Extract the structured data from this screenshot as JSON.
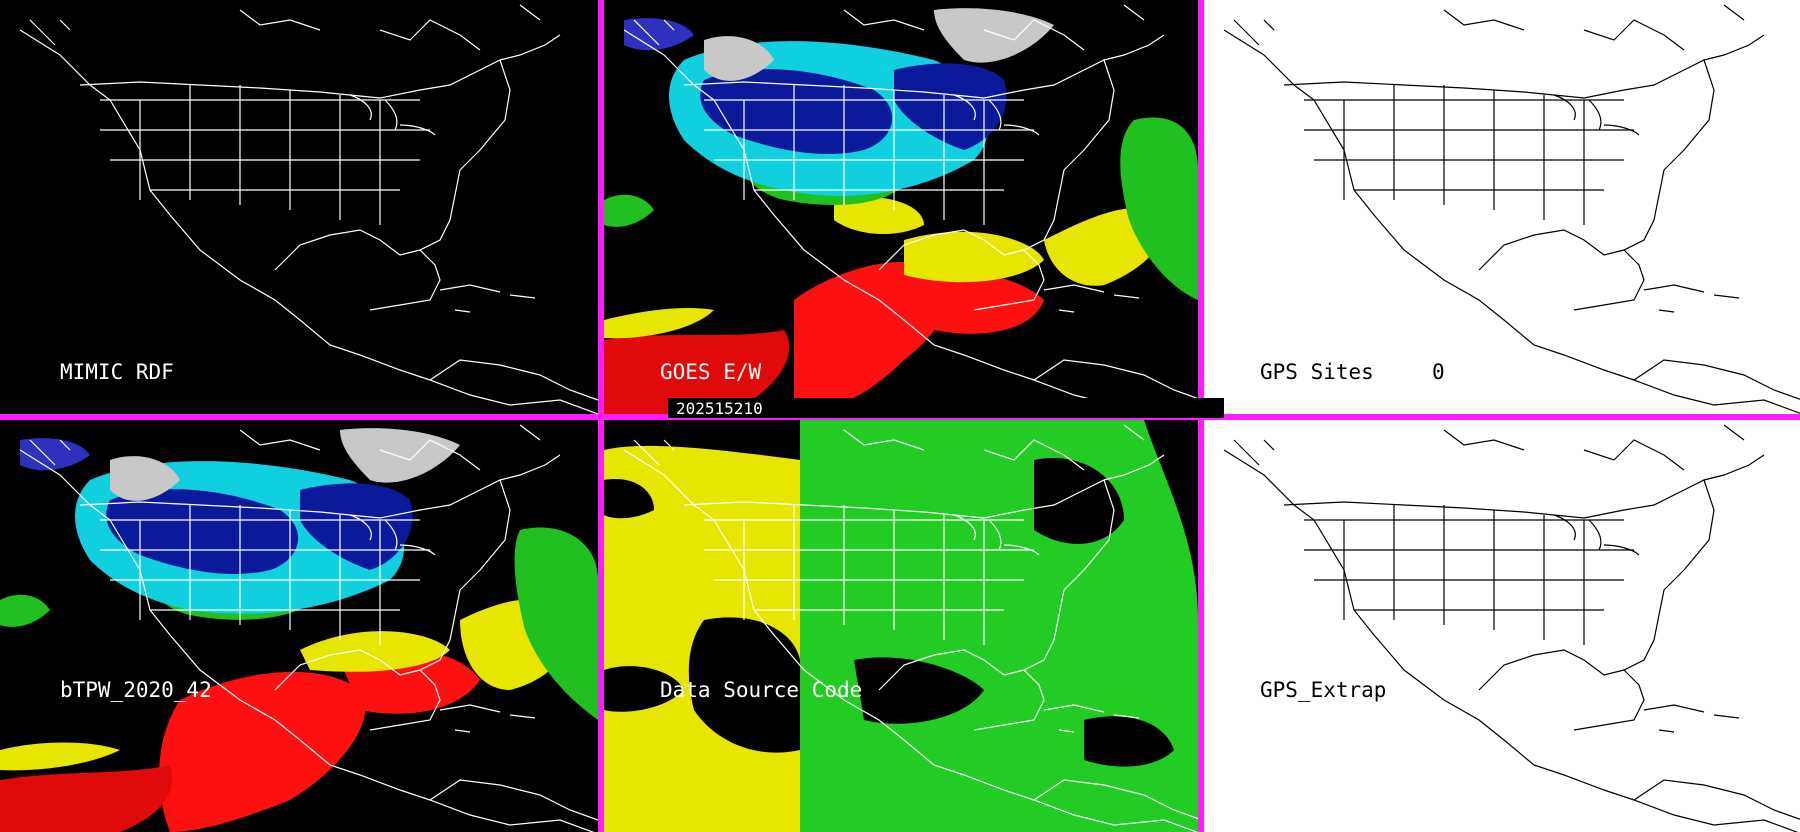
{
  "panels": {
    "mimic_rdf": {
      "label": "MIMIC RDF"
    },
    "goes_ew": {
      "label": "GOES E/W"
    },
    "gps_sites": {
      "label": "GPS Sites",
      "count": "0"
    },
    "btpw": {
      "label": "bTPW_2020_42"
    },
    "data_source": {
      "label": "Data Source Code"
    },
    "gps_extrap": {
      "label": "GPS_Extrap"
    }
  },
  "timestamp": "202515210",
  "colors": {
    "separator": "#ff1cff",
    "map_lines_dark": "#ffffff",
    "map_lines_light": "#000000",
    "tpw_scale": [
      "#ff1010",
      "#e6e600",
      "#20c020",
      "#10d0e0",
      "#0a1a9a",
      "#c8c8c8"
    ],
    "source_codes": [
      "#e6e600",
      "#22cc22"
    ]
  }
}
